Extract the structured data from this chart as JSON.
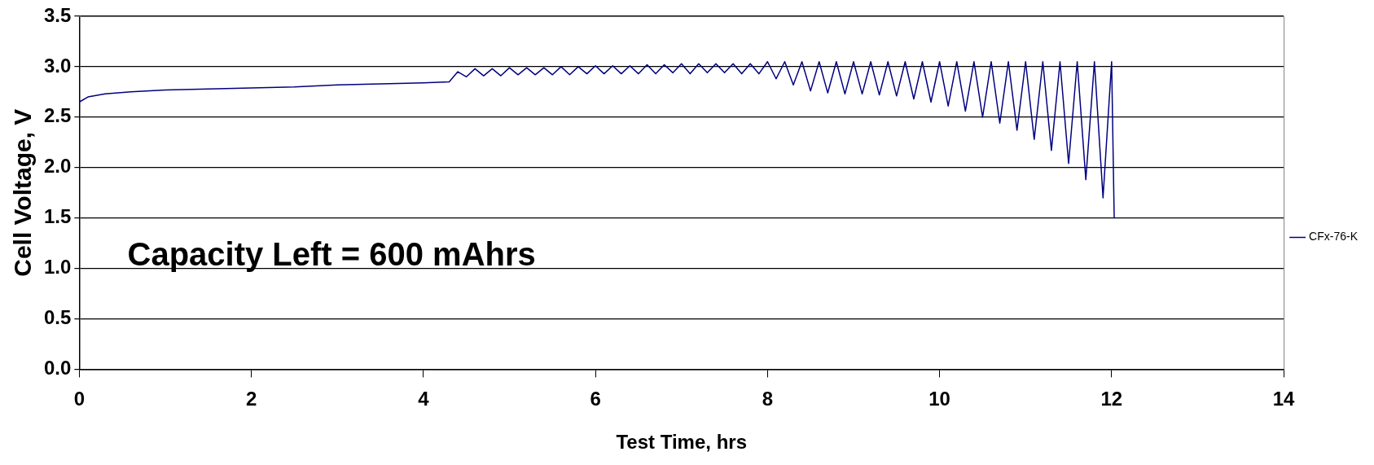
{
  "chart_data": {
    "type": "line",
    "xlabel": "Test Time, hrs",
    "ylabel": "Cell Voltage, V",
    "annotations": [
      "Capacity Left = 600 mAhrs"
    ],
    "xlim": [
      0,
      14
    ],
    "xticks": [
      0,
      2,
      4,
      6,
      8,
      10,
      12,
      14
    ],
    "ylim": [
      0,
      3.5
    ],
    "yticks": [
      {
        "value": 0,
        "label": "0.0"
      },
      0.5,
      {
        "value": 1,
        "label": "1.0"
      },
      1.5,
      {
        "value": 2,
        "label": "2.0"
      },
      2.5,
      {
        "value": 3,
        "label": "3.0"
      },
      3.5
    ],
    "grid": "y",
    "legend": "right",
    "marker": "none",
    "line_style": "solid",
    "series": [
      {
        "name": "CFx-76-K",
        "color": "#000080",
        "x": [
          0,
          0.1,
          0.3,
          0.6,
          1,
          1.5,
          2,
          2.5,
          3,
          3.5,
          4,
          4.3,
          4.4,
          4.5,
          4.6,
          4.7,
          4.8,
          4.9,
          5.0,
          5.1,
          5.2,
          5.3,
          5.4,
          5.5,
          5.6,
          5.7,
          5.8,
          5.9,
          6.0,
          6.1,
          6.2,
          6.3,
          6.4,
          6.5,
          6.6,
          6.7,
          6.8,
          6.9,
          7.0,
          7.1,
          7.2,
          7.3,
          7.4,
          7.5,
          7.6,
          7.7,
          7.8,
          7.9,
          8.0,
          8.1,
          8.2,
          8.3,
          8.4,
          8.5,
          8.6,
          8.7,
          8.8,
          8.9,
          9.0,
          9.1,
          9.2,
          9.3,
          9.4,
          9.5,
          9.6,
          9.7,
          9.8,
          9.9,
          10.0,
          10.1,
          10.2,
          10.3,
          10.4,
          10.5,
          10.6,
          10.7,
          10.8,
          10.9,
          11.0,
          11.1,
          11.2,
          11.3,
          11.4,
          11.5,
          11.6,
          11.7,
          11.8,
          11.9,
          12.0,
          12.03
        ],
        "values": [
          2.65,
          2.7,
          2.73,
          2.75,
          2.77,
          2.78,
          2.79,
          2.8,
          2.82,
          2.83,
          2.84,
          2.85,
          2.95,
          2.9,
          2.98,
          2.91,
          2.98,
          2.91,
          2.99,
          2.92,
          2.99,
          2.92,
          2.99,
          2.92,
          3.0,
          2.92,
          3.0,
          2.93,
          3.01,
          2.93,
          3.01,
          2.93,
          3.01,
          2.93,
          3.02,
          2.93,
          3.02,
          2.94,
          3.03,
          2.93,
          3.03,
          2.94,
          3.03,
          2.94,
          3.03,
          2.93,
          3.03,
          2.93,
          3.05,
          2.88,
          3.05,
          2.82,
          3.05,
          2.76,
          3.05,
          2.74,
          3.05,
          2.73,
          3.05,
          2.73,
          3.05,
          2.72,
          3.05,
          2.71,
          3.05,
          2.68,
          3.05,
          2.65,
          3.05,
          2.61,
          3.05,
          2.56,
          3.05,
          2.5,
          3.05,
          2.44,
          3.05,
          2.37,
          3.05,
          2.28,
          3.05,
          2.17,
          3.05,
          2.04,
          3.05,
          1.88,
          3.05,
          1.7,
          3.05,
          1.5
        ]
      }
    ]
  }
}
